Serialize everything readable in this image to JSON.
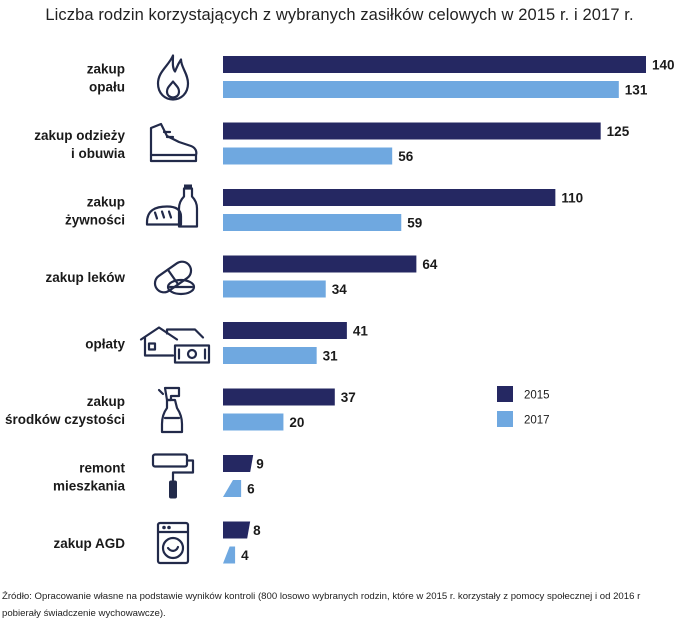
{
  "chart_data": {
    "type": "bar",
    "orientation": "horizontal",
    "title": "Liczba  rodzin  korzystających  z wybranych  zasiłków  celowych  w 2015 r. i 2017 r.",
    "categories": [
      {
        "lines": [
          "zakup",
          "opału"
        ],
        "icon": "flame-icon"
      },
      {
        "lines": [
          "zakup odzieży",
          "i obuwia"
        ],
        "icon": "shoe-icon"
      },
      {
        "lines": [
          "zakup",
          "żywności"
        ],
        "icon": "bread-bottle-icon"
      },
      {
        "lines": [
          "zakup leków"
        ],
        "icon": "pill-icon"
      },
      {
        "lines": [
          "opłaty"
        ],
        "icon": "house-money-icon"
      },
      {
        "lines": [
          "zakup",
          "środków czystości"
        ],
        "icon": "spray-bottle-icon"
      },
      {
        "lines": [
          "remont",
          "mieszkania"
        ],
        "icon": "paint-roller-icon"
      },
      {
        "lines": [
          "zakup AGD"
        ],
        "icon": "washing-machine-icon"
      }
    ],
    "series": [
      {
        "name": "2015",
        "color": "#252862",
        "values": [
          140,
          125,
          110,
          64,
          41,
          37,
          9,
          8
        ]
      },
      {
        "name": "2017",
        "color": "#6fa8e0",
        "values": [
          131,
          56,
          59,
          34,
          31,
          20,
          6,
          4
        ]
      }
    ],
    "xlim": [
      0,
      140
    ],
    "grid": false,
    "legend_position": "right-middle"
  },
  "source": "Źródło: Opracowanie  własne na podstawie wyników kontroli (800 losowo wybranych  rodzin, które w 2015 r. korzystały z pomocy społecznej i od 2016 r pobierały świadczenie wychowawcze)."
}
